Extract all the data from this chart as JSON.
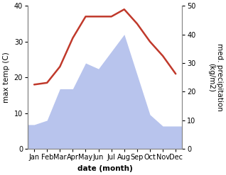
{
  "months": [
    "Jan",
    "Feb",
    "Mar",
    "Apr",
    "May",
    "Jun",
    "Jul",
    "Aug",
    "Sep",
    "Oct",
    "Nov",
    "Dec"
  ],
  "x_positions": [
    0,
    1,
    2,
    3,
    4,
    5,
    6,
    7,
    8,
    9,
    10,
    11
  ],
  "temperature": [
    18,
    18.5,
    23,
    31,
    37,
    37,
    37,
    39,
    35,
    30,
    26,
    21
  ],
  "precipitation": [
    8.5,
    10,
    21,
    21,
    30,
    28,
    34,
    40,
    26,
    12,
    8,
    8
  ],
  "temp_color": "#c0392b",
  "precip_color": "#b8c4ed",
  "temp_ylim": [
    0,
    40
  ],
  "precip_ylim": [
    0,
    50
  ],
  "temp_yticks": [
    0,
    10,
    20,
    30,
    40
  ],
  "precip_yticks": [
    0,
    10,
    20,
    30,
    40,
    50
  ],
  "ylabel_left": "max temp (C)",
  "ylabel_right": "med. precipitation\n(kg/m2)",
  "xlabel": "date (month)",
  "bg_color": "#ffffff",
  "label_fontsize": 7.5,
  "tick_fontsize": 7,
  "line_width": 1.8,
  "spine_color": "#888888"
}
